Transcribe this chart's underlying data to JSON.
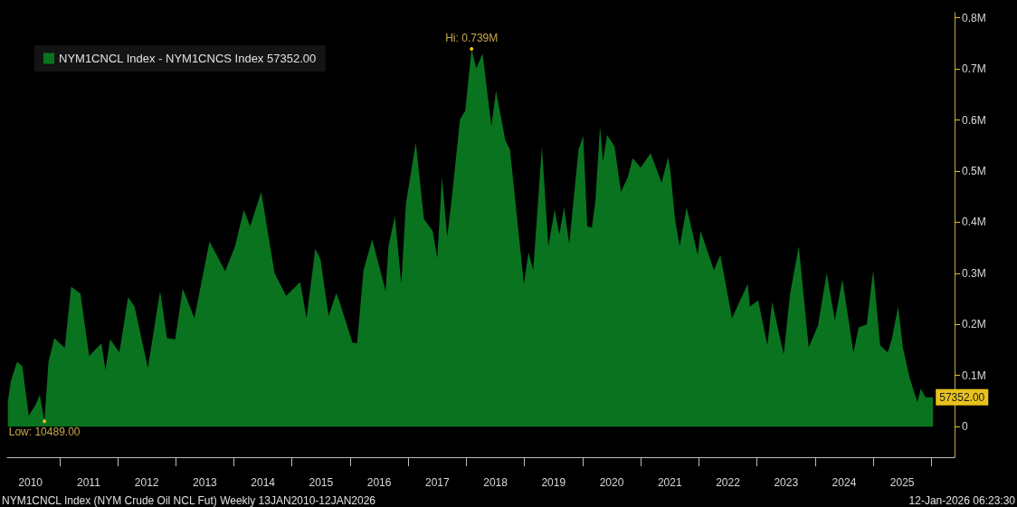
{
  "chart_data": {
    "type": "area",
    "x": [
      2010.11,
      2010.16,
      2010.27,
      2010.36,
      2010.47,
      2010.58,
      2010.66,
      2010.74,
      2010.81,
      2010.91,
      2011.09,
      2011.2,
      2011.36,
      2011.51,
      2011.72,
      2011.79,
      2011.87,
      2012.03,
      2012.18,
      2012.29,
      2012.52,
      2012.73,
      2012.85,
      2012.99,
      2013.12,
      2013.32,
      2013.58,
      2013.85,
      2014.02,
      2014.17,
      2014.28,
      2014.47,
      2014.7,
      2014.9,
      2015.14,
      2015.25,
      2015.4,
      2015.49,
      2015.63,
      2015.76,
      2015.81,
      2016.04,
      2016.12,
      2016.23,
      2016.38,
      2016.61,
      2016.66,
      2016.77,
      2016.88,
      2016.96,
      2017.13,
      2017.27,
      2017.42,
      2017.5,
      2017.58,
      2017.67,
      2017.75,
      2017.89,
      2017.98,
      2018.09,
      2018.17,
      2018.28,
      2018.43,
      2018.51,
      2018.67,
      2018.75,
      2018.99,
      2019.07,
      2019.15,
      2019.3,
      2019.41,
      2019.52,
      2019.6,
      2019.68,
      2019.77,
      2019.93,
      2020.01,
      2020.08,
      2020.16,
      2020.22,
      2020.3,
      2020.35,
      2020.42,
      2020.55,
      2020.66,
      2020.78,
      2020.86,
      2021.0,
      2021.17,
      2021.36,
      2021.47,
      2021.51,
      2021.59,
      2021.67,
      2021.79,
      2021.98,
      2022.03,
      2022.26,
      2022.37,
      2022.57,
      2022.84,
      2022.88,
      2023.02,
      2023.18,
      2023.26,
      2023.46,
      2023.57,
      2023.72,
      2023.89,
      2024.05,
      2024.2,
      2024.34,
      2024.47,
      2024.66,
      2024.75,
      2024.89,
      2025.0,
      2025.12,
      2025.25,
      2025.32,
      2025.43,
      2025.51,
      2025.63,
      2025.76,
      2025.82,
      2025.9,
      2026.03
    ],
    "series": [
      {
        "name": "NYM1CNCL Index - NYM1CNCS Index 57352.00",
        "color": "#0a7320",
        "values": [
          48000,
          88000,
          127000,
          118000,
          21000,
          41000,
          62000,
          10489,
          127000,
          173000,
          154000,
          274000,
          260000,
          138000,
          163000,
          111000,
          171000,
          145000,
          253000,
          235000,
          115000,
          265000,
          173000,
          171000,
          270000,
          212000,
          362000,
          304000,
          353000,
          424000,
          392000,
          459000,
          300000,
          256000,
          283000,
          212000,
          348000,
          327000,
          216000,
          261000,
          247000,
          164000,
          163000,
          306000,
          366000,
          265000,
          353000,
          412000,
          279000,
          436000,
          556000,
          406000,
          383000,
          330000,
          489000,
          371000,
          447000,
          601000,
          618000,
          739000,
          701000,
          730000,
          588000,
          657000,
          560000,
          542000,
          279000,
          341000,
          306000,
          548000,
          353000,
          424000,
          376000,
          429000,
          357000,
          542000,
          569000,
          392000,
          389000,
          442000,
          588000,
          518000,
          571000,
          548000,
          459000,
          489000,
          525000,
          507000,
          535000,
          477000,
          527000,
          500000,
          406000,
          353000,
          429000,
          336000,
          383000,
          306000,
          336000,
          212000,
          279000,
          235000,
          247000,
          159000,
          244000,
          141000,
          260000,
          353000,
          155000,
          198000,
          300000,
          208000,
          288000,
          145000,
          194000,
          200000,
          306000,
          159000,
          145000,
          171000,
          235000,
          155000,
          94000,
          48000,
          74000,
          57000,
          57352
        ]
      }
    ],
    "xlim": [
      2010.1,
      2026.4
    ],
    "xticks": [
      {
        "value": 2010.5,
        "label": "2010"
      },
      {
        "value": 2011,
        "label": null
      },
      {
        "value": 2011.5,
        "label": "2011"
      },
      {
        "value": 2012,
        "label": null
      },
      {
        "value": 2012.5,
        "label": "2012"
      },
      {
        "value": 2013,
        "label": null
      },
      {
        "value": 2013.5,
        "label": "2013"
      },
      {
        "value": 2014,
        "label": null
      },
      {
        "value": 2014.5,
        "label": "2014"
      },
      {
        "value": 2015,
        "label": null
      },
      {
        "value": 2015.5,
        "label": "2015"
      },
      {
        "value": 2016,
        "label": null
      },
      {
        "value": 2016.5,
        "label": "2016"
      },
      {
        "value": 2017,
        "label": null
      },
      {
        "value": 2017.5,
        "label": "2017"
      },
      {
        "value": 2018,
        "label": null
      },
      {
        "value": 2018.5,
        "label": "2018"
      },
      {
        "value": 2019,
        "label": null
      },
      {
        "value": 2019.5,
        "label": "2019"
      },
      {
        "value": 2020,
        "label": null
      },
      {
        "value": 2020.5,
        "label": "2020"
      },
      {
        "value": 2021,
        "label": null
      },
      {
        "value": 2021.5,
        "label": "2021"
      },
      {
        "value": 2022,
        "label": null
      },
      {
        "value": 2022.5,
        "label": "2022"
      },
      {
        "value": 2023,
        "label": null
      },
      {
        "value": 2023.5,
        "label": "2023"
      },
      {
        "value": 2024,
        "label": null
      },
      {
        "value": 2024.5,
        "label": "2024"
      },
      {
        "value": 2025,
        "label": null
      },
      {
        "value": 2025.5,
        "label": "2025"
      },
      {
        "value": 2026,
        "label": null
      }
    ],
    "ylim": [
      -60000,
      810000
    ],
    "yticks": [
      0,
      {
        "value": 100000,
        "label": "0.1M"
      },
      {
        "value": 200000,
        "label": "0.2M"
      },
      {
        "value": 300000,
        "label": "0.3M"
      },
      {
        "value": 400000,
        "label": "0.4M"
      },
      {
        "value": 500000,
        "label": "0.5M"
      },
      {
        "value": 600000,
        "label": "0.6M"
      },
      {
        "value": 700000,
        "label": "0.7M"
      },
      {
        "value": 800000,
        "label": "0.8M"
      }
    ],
    "annotations": [
      {
        "text": "Hi: 0.739M",
        "x": 2018.09,
        "y": 739000
      },
      {
        "text": "Low: 10489.00",
        "x": 2010.74,
        "y": 10489
      },
      {
        "text": "57352.00",
        "x": 2026.03,
        "y": 57352
      },
      "NYM1CNCL Index (NYM Crude Oil NCL Fut) Weekly 13JAN2010-12JAN2026",
      "12-Jan-2026 06:23:30"
    ],
    "legend": "top left",
    "grid": false,
    "marker": "none"
  }
}
